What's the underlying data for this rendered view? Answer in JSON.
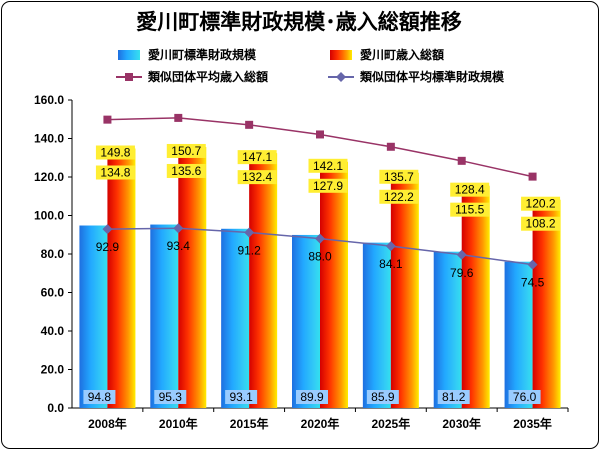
{
  "chart_data": {
    "type": "bar",
    "title": "愛川町標準財政規模･歳入総額推移",
    "categories": [
      "2008年",
      "2010年",
      "2015年",
      "2020年",
      "2025年",
      "2030年",
      "2035年"
    ],
    "ylim": [
      0,
      160
    ],
    "yticks": [
      "0.0",
      "20.0",
      "40.0",
      "60.0",
      "80.0",
      "100.0",
      "120.0",
      "140.0",
      "160.0"
    ],
    "grid": false,
    "legend_position": "top",
    "series": [
      {
        "name": "愛川町標準財政規模",
        "kind": "bar",
        "color": "#1e90ff",
        "values": [
          94.8,
          95.3,
          93.1,
          89.9,
          85.9,
          81.2,
          76.0
        ],
        "labels": [
          "94.8",
          "95.3",
          "93.1",
          "89.9",
          "85.9",
          "81.2",
          "76.0"
        ]
      },
      {
        "name": "愛川町歳入総額",
        "kind": "bar",
        "color": "#ff3300",
        "values": [
          134.8,
          135.6,
          132.4,
          127.9,
          122.2,
          115.5,
          108.2
        ],
        "labels": [
          "134.8",
          "135.6",
          "132.4",
          "127.9",
          "122.2",
          "115.5",
          "108.2"
        ]
      },
      {
        "name": "類似団体平均歳入総額",
        "kind": "line",
        "color": "#993366",
        "marker": "square",
        "values": [
          149.8,
          150.7,
          147.1,
          142.1,
          135.7,
          128.4,
          120.2
        ],
        "labels": [
          "149.8",
          "150.7",
          "147.1",
          "142.1",
          "135.7",
          "128.4",
          "120.2"
        ]
      },
      {
        "name": "類似団体平均標準財政規模",
        "kind": "line",
        "color": "#6666aa",
        "marker": "diamond",
        "values": [
          92.9,
          93.4,
          91.2,
          88.0,
          84.1,
          79.6,
          74.5
        ],
        "labels": [
          "92.9",
          "93.4",
          "91.2",
          "88.0",
          "84.1",
          "79.6",
          "74.5"
        ]
      }
    ]
  }
}
